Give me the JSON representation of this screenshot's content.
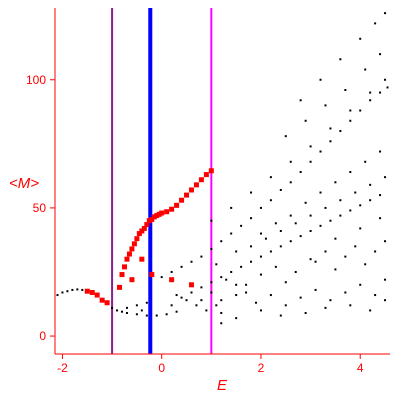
{
  "chart_data": {
    "type": "scatter",
    "title": "",
    "xlabel": "E",
    "ylabel": "<M>",
    "xlim": [
      -2.15,
      4.6
    ],
    "ylim": [
      -7,
      128
    ],
    "x_ticks": [
      -2,
      0,
      2,
      4
    ],
    "x_tick_labels": [
      "-2",
      "0",
      "2",
      "4"
    ],
    "y_ticks": [
      0,
      50,
      100
    ],
    "y_tick_labels": [
      "0",
      "50",
      "100"
    ],
    "grid": false,
    "legend": "none",
    "colors": {
      "axes": "#ff0000",
      "points_black": "#000000",
      "points_red": "#ff0000",
      "line_purple": "#8b2090",
      "line_blue": "#0000ff",
      "line_magenta": "#ff00ff"
    },
    "vertical_lines": [
      {
        "x": -1.0,
        "color": "#8b2090",
        "style": "thin"
      },
      {
        "x": -0.23,
        "color": "#0000ff",
        "style": "thick"
      },
      {
        "x": 1.0,
        "color": "#ff00ff",
        "style": "thin"
      }
    ],
    "series": [
      {
        "color": "#ff0000",
        "marker": "square",
        "points": [
          [
            -1.5,
            17.5
          ],
          [
            -1.4,
            17
          ],
          [
            -1.3,
            16
          ],
          [
            -1.2,
            14
          ],
          [
            -1.1,
            13
          ],
          [
            -0.85,
            19
          ],
          [
            -0.8,
            24
          ],
          [
            -0.75,
            27
          ],
          [
            -0.7,
            30
          ],
          [
            -0.65,
            32
          ],
          [
            -0.6,
            34
          ],
          [
            -0.55,
            36
          ],
          [
            -0.5,
            38
          ],
          [
            -0.45,
            40
          ],
          [
            -0.4,
            41
          ],
          [
            -0.35,
            42
          ],
          [
            -0.3,
            43.5
          ],
          [
            -0.25,
            45
          ],
          [
            -0.2,
            45.5
          ],
          [
            -0.15,
            46.5
          ],
          [
            -0.1,
            47
          ],
          [
            -0.05,
            47.5
          ],
          [
            0,
            48
          ],
          [
            0.1,
            48.5
          ],
          [
            0.2,
            49.5
          ],
          [
            0.3,
            51
          ],
          [
            0.4,
            53
          ],
          [
            0.5,
            55
          ],
          [
            0.6,
            57
          ],
          [
            0.7,
            59
          ],
          [
            0.8,
            61
          ],
          [
            0.9,
            63
          ],
          [
            1.0,
            64.5
          ],
          [
            -0.4,
            30
          ],
          [
            -0.6,
            22
          ],
          [
            -0.2,
            24
          ],
          [
            0.2,
            22
          ],
          [
            0.6,
            20
          ]
        ]
      },
      {
        "color": "#000000",
        "marker": "dot",
        "points": [
          [
            -2.1,
            16
          ],
          [
            -2.0,
            17
          ],
          [
            -1.9,
            17.5
          ],
          [
            -1.8,
            18
          ],
          [
            -1.7,
            18.2
          ],
          [
            -1.6,
            18
          ],
          [
            -1.0,
            11
          ],
          [
            -0.9,
            10
          ],
          [
            -0.8,
            9.5
          ],
          [
            -0.7,
            9
          ],
          [
            -0.5,
            8.5
          ],
          [
            -0.3,
            8
          ],
          [
            -0.1,
            8
          ],
          [
            0.1,
            8.5
          ],
          [
            0.3,
            9.5
          ],
          [
            -0.7,
            11
          ],
          [
            -0.5,
            12
          ],
          [
            -0.3,
            13
          ],
          [
            0.3,
            16
          ],
          [
            0.5,
            14
          ],
          [
            0.7,
            12
          ],
          [
            0.9,
            10
          ],
          [
            1.2,
            9
          ],
          [
            1.5,
            7
          ],
          [
            0.0,
            23
          ],
          [
            0.2,
            25
          ],
          [
            0.4,
            27
          ],
          [
            0.6,
            29
          ],
          [
            0.8,
            31
          ],
          [
            1.0,
            34
          ],
          [
            1.2,
            37
          ],
          [
            1.4,
            40
          ],
          [
            1.6,
            43
          ],
          [
            1.8,
            46
          ],
          [
            2.0,
            50
          ],
          [
            2.2,
            53
          ],
          [
            2.4,
            57
          ],
          [
            2.6,
            60
          ],
          [
            2.8,
            64
          ],
          [
            3.0,
            68
          ],
          [
            3.2,
            72
          ],
          [
            3.4,
            76
          ],
          [
            3.6,
            80
          ],
          [
            3.8,
            84
          ],
          [
            4.0,
            88
          ],
          [
            4.2,
            92
          ],
          [
            4.4,
            95
          ],
          [
            4.55,
            97
          ],
          [
            1.0,
            45
          ],
          [
            1.4,
            50
          ],
          [
            1.8,
            56
          ],
          [
            2.2,
            62
          ],
          [
            2.6,
            68
          ],
          [
            3.0,
            74
          ],
          [
            3.4,
            81
          ],
          [
            3.8,
            88
          ],
          [
            4.2,
            95
          ],
          [
            4.5,
            100
          ],
          [
            2.8,
            92
          ],
          [
            3.2,
            100
          ],
          [
            3.6,
            108
          ],
          [
            4.0,
            116
          ],
          [
            4.3,
            122
          ],
          [
            4.5,
            126
          ],
          [
            0.4,
            15
          ],
          [
            0.6,
            17
          ],
          [
            0.8,
            19
          ],
          [
            1.0,
            21
          ],
          [
            1.2,
            23
          ],
          [
            1.4,
            25
          ],
          [
            1.6,
            27
          ],
          [
            1.8,
            29
          ],
          [
            2.0,
            31
          ],
          [
            2.2,
            33
          ],
          [
            2.4,
            35
          ],
          [
            2.6,
            37
          ],
          [
            2.8,
            39
          ],
          [
            3.0,
            41
          ],
          [
            3.2,
            43
          ],
          [
            3.4,
            45
          ],
          [
            3.6,
            47
          ],
          [
            3.8,
            49
          ],
          [
            4.0,
            51
          ],
          [
            4.2,
            53
          ],
          [
            4.4,
            55
          ],
          [
            1.5,
            33
          ],
          [
            1.8,
            35
          ],
          [
            2.1,
            38
          ],
          [
            2.4,
            41
          ],
          [
            2.7,
            44
          ],
          [
            3.0,
            47
          ],
          [
            3.3,
            50
          ],
          [
            3.6,
            53
          ],
          [
            3.9,
            56
          ],
          [
            4.2,
            59
          ],
          [
            4.5,
            62
          ],
          [
            1.1,
            28
          ],
          [
            1.3,
            22
          ],
          [
            1.7,
            20
          ],
          [
            2.0,
            24
          ],
          [
            2.3,
            27
          ],
          [
            2.5,
            21
          ],
          [
            2.7,
            25
          ],
          [
            3.1,
            29
          ],
          [
            3.3,
            33
          ],
          [
            3.5,
            26
          ],
          [
            3.7,
            31
          ],
          [
            3.9,
            35
          ],
          [
            4.1,
            28
          ],
          [
            4.3,
            33
          ],
          [
            4.5,
            37
          ],
          [
            1.2,
            14
          ],
          [
            1.5,
            16
          ],
          [
            1.9,
            13
          ],
          [
            2.2,
            16
          ],
          [
            2.5,
            12
          ],
          [
            2.8,
            15
          ],
          [
            3.1,
            18
          ],
          [
            3.4,
            14
          ],
          [
            3.7,
            17
          ],
          [
            4.0,
            20
          ],
          [
            4.3,
            16
          ],
          [
            4.5,
            22
          ],
          [
            2.0,
            40
          ],
          [
            2.3,
            44
          ],
          [
            2.6,
            47
          ],
          [
            2.9,
            52
          ],
          [
            3.2,
            56
          ],
          [
            3.5,
            60
          ],
          [
            3.8,
            64
          ],
          [
            4.1,
            68
          ],
          [
            4.4,
            72
          ],
          [
            2.5,
            78
          ],
          [
            2.9,
            84
          ],
          [
            3.3,
            90
          ],
          [
            3.7,
            96
          ],
          [
            4.1,
            104
          ],
          [
            4.4,
            110
          ],
          [
            1.5,
            20
          ],
          [
            1.7,
            17
          ],
          [
            1.0,
            17
          ],
          [
            1.1,
            12
          ],
          [
            0.8,
            14
          ],
          [
            0.2,
            12
          ],
          [
            -0.4,
            10
          ],
          [
            1.2,
            5
          ],
          [
            3.0,
            30
          ],
          [
            3.5,
            38
          ],
          [
            4.0,
            42
          ],
          [
            4.4,
            46
          ],
          [
            2.0,
            10
          ],
          [
            2.4,
            8
          ],
          [
            2.9,
            9
          ],
          [
            3.3,
            11
          ],
          [
            3.8,
            12
          ],
          [
            4.2,
            10
          ],
          [
            4.5,
            14
          ]
        ]
      }
    ]
  }
}
